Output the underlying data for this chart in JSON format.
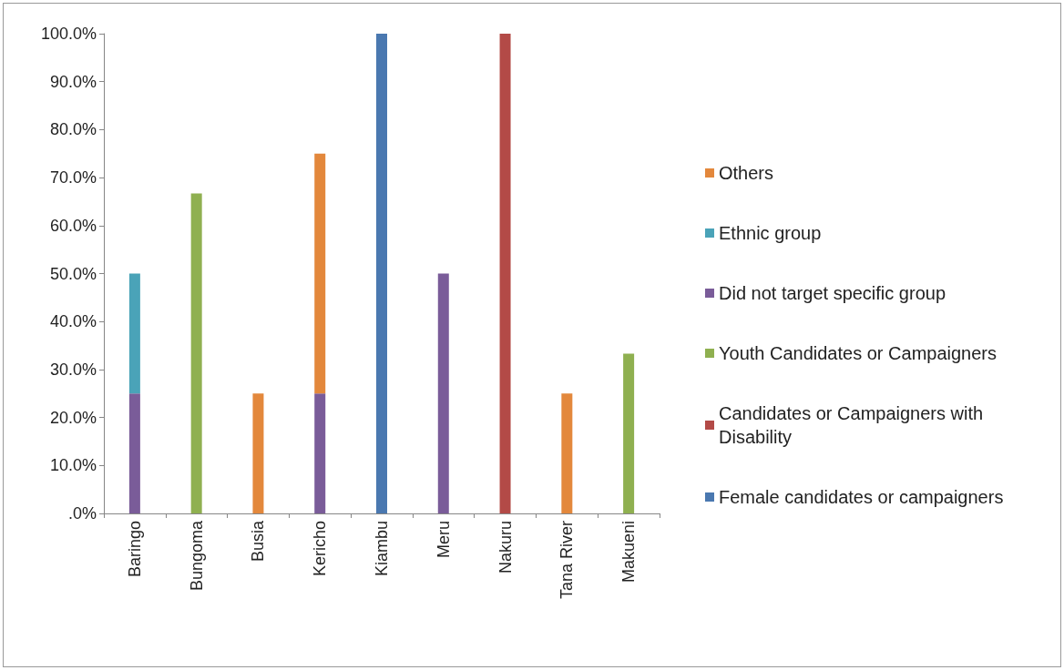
{
  "chart_data": {
    "type": "bar",
    "stacked": true,
    "categories": [
      "Baringo",
      "Bungoma",
      "Busia",
      "Kericho",
      "Kiambu",
      "Meru",
      "Nakuru",
      "Tana River",
      "Makueni"
    ],
    "series": [
      {
        "name": "Female candidates or campaigners",
        "color": "#4a78b0",
        "values": [
          null,
          null,
          null,
          null,
          100,
          null,
          null,
          null,
          null
        ]
      },
      {
        "name": "Candidates or Campaigners with Disability",
        "color": "#b34a47",
        "values": [
          null,
          null,
          null,
          null,
          null,
          null,
          100,
          null,
          null
        ]
      },
      {
        "name": "Youth Candidates or Campaigners",
        "color": "#8fb050",
        "values": [
          null,
          66.7,
          null,
          null,
          null,
          null,
          null,
          null,
          33.3
        ]
      },
      {
        "name": "Did not target specific group",
        "color": "#7a5c99",
        "values": [
          25,
          null,
          null,
          25,
          null,
          50,
          null,
          null,
          null
        ]
      },
      {
        "name": "Ethnic group",
        "color": "#4aa3b8",
        "values": [
          25,
          null,
          null,
          null,
          null,
          null,
          null,
          null,
          null
        ]
      },
      {
        "name": "Others",
        "color": "#e3883c",
        "values": [
          null,
          null,
          25,
          50,
          null,
          null,
          null,
          25,
          null
        ]
      }
    ],
    "ylim": [
      0,
      100
    ],
    "yticks": [
      {
        "value": 0,
        "label": ".0%"
      },
      {
        "value": 10,
        "label": "10.0%"
      },
      {
        "value": 20,
        "label": "20.0%"
      },
      {
        "value": 30,
        "label": "30.0%"
      },
      {
        "value": 40,
        "label": "40.0%"
      },
      {
        "value": 50,
        "label": "50.0%"
      },
      {
        "value": 60,
        "label": "60.0%"
      },
      {
        "value": 70,
        "label": "70.0%"
      },
      {
        "value": 80,
        "label": "80.0%"
      },
      {
        "value": 90,
        "label": "90.0%"
      },
      {
        "value": 100,
        "label": "100.0%"
      }
    ],
    "grid": false,
    "legend": "right"
  }
}
